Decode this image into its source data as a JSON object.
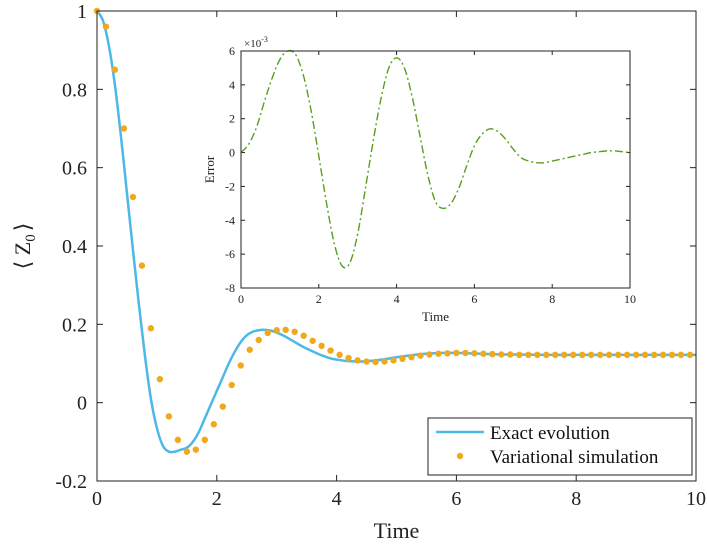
{
  "chart_data": [
    {
      "type": "line",
      "xlabel": "Time",
      "ylabel": "⟨ Z",
      "ylabel_subscript": "0",
      "ylabel_close": "⟩",
      "xlim": [
        0,
        10
      ],
      "ylim": [
        -0.2,
        1
      ],
      "xticks": [
        0,
        2,
        4,
        6,
        8,
        10
      ],
      "xtick_labels": [
        "0",
        "2",
        "4",
        "6",
        "8",
        "10"
      ],
      "yticks": [
        -0.2,
        0,
        0.2,
        0.4,
        0.6,
        0.8,
        1
      ],
      "ytick_labels": [
        "-0.2",
        "0",
        "0.2",
        "0.4",
        "0.6",
        "0.8",
        "1"
      ],
      "legend": {
        "position": "bottom-right",
        "entries": [
          "Exact evolution",
          "Variational simulation"
        ]
      },
      "colors": {
        "exact": "#4db8e8",
        "variational": "#f0a81c"
      },
      "series": [
        {
          "name": "Exact evolution",
          "style": "line",
          "x": [
            0,
            0.1,
            0.2,
            0.3,
            0.4,
            0.5,
            0.6,
            0.7,
            0.8,
            0.9,
            1.0,
            1.1,
            1.2,
            1.3,
            1.4,
            1.5,
            1.6,
            1.7,
            1.8,
            1.9,
            2.0,
            2.1,
            2.2,
            2.3,
            2.4,
            2.5,
            2.6,
            2.7,
            2.8,
            2.9,
            3.0,
            3.1,
            3.2,
            3.3,
            3.4,
            3.5,
            3.6,
            3.7,
            3.8,
            3.9,
            4.0,
            4.2,
            4.4,
            4.6,
            4.8,
            5.0,
            5.2,
            5.4,
            5.6,
            5.8,
            6.0,
            6.2,
            6.4,
            6.6,
            6.8,
            7.0,
            7.5,
            8.0,
            8.5,
            9.0,
            9.5,
            10.0
          ],
          "y": [
            1.0,
            0.975,
            0.91,
            0.81,
            0.68,
            0.535,
            0.39,
            0.25,
            0.12,
            0.01,
            -0.065,
            -0.11,
            -0.125,
            -0.125,
            -0.12,
            -0.115,
            -0.1,
            -0.075,
            -0.04,
            -0.005,
            0.03,
            0.065,
            0.1,
            0.13,
            0.155,
            0.172,
            0.181,
            0.185,
            0.186,
            0.184,
            0.179,
            0.172,
            0.164,
            0.155,
            0.146,
            0.138,
            0.131,
            0.124,
            0.118,
            0.113,
            0.11,
            0.106,
            0.105,
            0.107,
            0.111,
            0.116,
            0.12,
            0.124,
            0.126,
            0.127,
            0.127,
            0.126,
            0.125,
            0.124,
            0.123,
            0.123,
            0.122,
            0.122,
            0.122,
            0.122,
            0.122,
            0.122
          ]
        },
        {
          "name": "Variational simulation",
          "style": "markers",
          "x": [
            0,
            0.15,
            0.3,
            0.45,
            0.6,
            0.75,
            0.9,
            1.05,
            1.2,
            1.35,
            1.5,
            1.65,
            1.8,
            1.95,
            2.1,
            2.25,
            2.4,
            2.55,
            2.7,
            2.85,
            3.0,
            3.15,
            3.3,
            3.45,
            3.6,
            3.75,
            3.9,
            4.05,
            4.2,
            4.35,
            4.5,
            4.65,
            4.8,
            4.95,
            5.1,
            5.25,
            5.4,
            5.55,
            5.7,
            5.85,
            6.0,
            6.15,
            6.3,
            6.45,
            6.6,
            6.75,
            6.9,
            7.05,
            7.2,
            7.35,
            7.5,
            7.65,
            7.8,
            7.95,
            8.1,
            8.25,
            8.4,
            8.55,
            8.7,
            8.85,
            9.0,
            9.15,
            9.3,
            9.45,
            9.6,
            9.75,
            9.9
          ],
          "y": [
            1.0,
            0.96,
            0.85,
            0.7,
            0.525,
            0.35,
            0.19,
            0.06,
            -0.035,
            -0.095,
            -0.125,
            -0.12,
            -0.095,
            -0.055,
            -0.01,
            0.045,
            0.095,
            0.135,
            0.16,
            0.178,
            0.185,
            0.186,
            0.181,
            0.171,
            0.158,
            0.145,
            0.133,
            0.122,
            0.114,
            0.108,
            0.105,
            0.104,
            0.105,
            0.108,
            0.112,
            0.116,
            0.12,
            0.123,
            0.125,
            0.126,
            0.127,
            0.127,
            0.126,
            0.125,
            0.124,
            0.123,
            0.123,
            0.122,
            0.122,
            0.122,
            0.122,
            0.122,
            0.122,
            0.122,
            0.122,
            0.122,
            0.122,
            0.122,
            0.122,
            0.122,
            0.122,
            0.122,
            0.122,
            0.122,
            0.122,
            0.122,
            0.122
          ]
        }
      ]
    },
    {
      "type": "line",
      "inset": true,
      "xlabel": "Time",
      "ylabel": "Error",
      "multiplier_label": "×10",
      "multiplier_exponent": "-3",
      "xlim": [
        0,
        10
      ],
      "ylim": [
        -8,
        6
      ],
      "xticks": [
        0,
        2,
        4,
        6,
        8,
        10
      ],
      "xtick_labels": [
        "0",
        "2",
        "4",
        "6",
        "8",
        "10"
      ],
      "yticks": [
        -8,
        -6,
        -4,
        -2,
        0,
        2,
        4,
        6
      ],
      "ytick_labels": [
        "-8",
        "-6",
        "-4",
        "-2",
        "0",
        "2",
        "4",
        "6"
      ],
      "colors": {
        "error": "#5a9e1c"
      },
      "series": [
        {
          "style": "dash-dot",
          "x": [
            0,
            0.2,
            0.4,
            0.6,
            0.8,
            1.0,
            1.2,
            1.4,
            1.6,
            1.8,
            2.0,
            2.2,
            2.4,
            2.6,
            2.8,
            3.0,
            3.2,
            3.4,
            3.6,
            3.8,
            4.0,
            4.2,
            4.4,
            4.6,
            4.8,
            5.0,
            5.2,
            5.4,
            5.6,
            5.8,
            6.0,
            6.2,
            6.4,
            6.6,
            6.8,
            7.0,
            7.2,
            7.4,
            7.6,
            7.8,
            8.0,
            8.2,
            8.4,
            8.6,
            8.8,
            9.0,
            9.2,
            9.4,
            9.6,
            9.8,
            10.0
          ],
          "y": [
            0.0,
            0.5,
            1.5,
            3.0,
            4.4,
            5.5,
            6.0,
            5.8,
            4.6,
            2.5,
            -0.2,
            -3.0,
            -5.4,
            -6.7,
            -6.5,
            -4.8,
            -2.1,
            0.7,
            3.2,
            5.0,
            5.6,
            5.0,
            3.3,
            1.0,
            -1.3,
            -2.9,
            -3.3,
            -3.0,
            -2.1,
            -0.8,
            0.4,
            1.1,
            1.4,
            1.25,
            0.8,
            0.2,
            -0.3,
            -0.5,
            -0.6,
            -0.6,
            -0.5,
            -0.4,
            -0.3,
            -0.2,
            -0.1,
            0.0,
            0.05,
            0.1,
            0.1,
            0.05,
            0.0
          ]
        }
      ]
    }
  ]
}
